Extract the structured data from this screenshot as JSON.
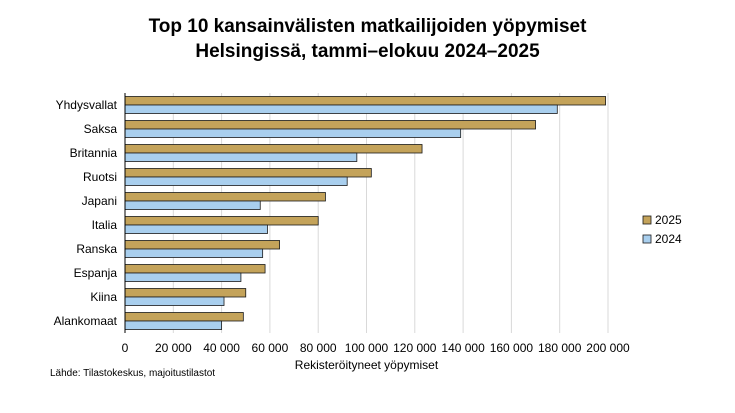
{
  "chart_data": {
    "type": "bar",
    "orientation": "horizontal",
    "title": "Top 10 kansainvälisten matkailijoiden yöpymiset",
    "subtitle": "Helsingissä, tammi–elokuu 2024–2025",
    "xlabel": "Rekisteröityneet yöpymiset",
    "ylabel": "",
    "xlim": [
      0,
      200000
    ],
    "xticks": [
      0,
      20000,
      40000,
      60000,
      80000,
      100000,
      120000,
      140000,
      160000,
      180000,
      200000
    ],
    "xtick_labels": [
      "0",
      "20 000",
      "40 000",
      "60 000",
      "80 000",
      "100 000",
      "120 000",
      "140 000",
      "160 000",
      "180 000",
      "200 000"
    ],
    "grid": "vertical",
    "legend": "right",
    "categories": [
      "Yhdysvallat",
      "Saksa",
      "Britannia",
      "Ruotsi",
      "Japani",
      "Italia",
      "Ranska",
      "Espanja",
      "Kiina",
      "Alankomaat"
    ],
    "series": [
      {
        "name": "2025",
        "color": "#c4a35a",
        "values": [
          199000,
          170000,
          123000,
          102000,
          83000,
          80000,
          64000,
          58000,
          50000,
          49000
        ]
      },
      {
        "name": "2024",
        "color": "#a9cfee",
        "values": [
          179000,
          139000,
          96000,
          92000,
          56000,
          59000,
          57000,
          48000,
          41000,
          40000
        ]
      }
    ]
  },
  "source": "Lähde: Tilastokeskus, majoitustilastot"
}
